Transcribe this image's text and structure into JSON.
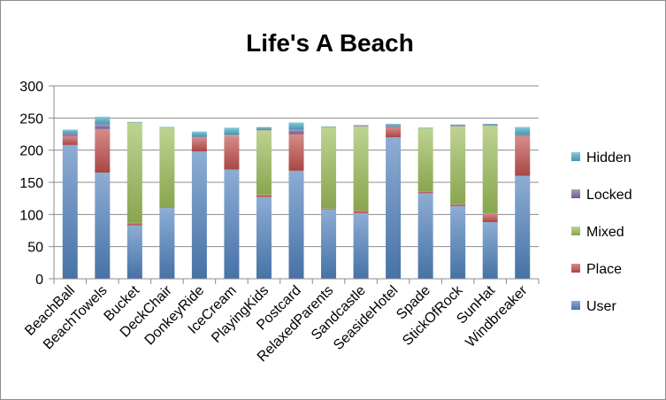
{
  "chart_data": {
    "type": "bar",
    "stacked": true,
    "title": "Life's A Beach",
    "xlabel": "",
    "ylabel": "",
    "ylim": [
      0,
      300
    ],
    "yticks": [
      0,
      50,
      100,
      150,
      200,
      250,
      300
    ],
    "grid": true,
    "legend_position": "right",
    "categories": [
      "BeachBall",
      "BeachTowels",
      "Bucket",
      "DeckChair",
      "DonkeyRide",
      "IceCream",
      "PlayingKids",
      "Postcard",
      "RelaxedParents",
      "Sandcastle",
      "SeasideHotel",
      "Spade",
      "StickOfRock",
      "SunHat",
      "Windbreaker"
    ],
    "series": [
      {
        "name": "User",
        "color": "#4f81bd",
        "values": [
          208,
          165,
          83,
          110,
          198,
          170,
          127,
          168,
          108,
          102,
          220,
          133,
          113,
          88,
          160
        ]
      },
      {
        "name": "Place",
        "color": "#c0504d",
        "values": [
          14,
          68,
          4,
          1,
          22,
          52,
          4,
          57,
          1,
          4,
          16,
          3,
          3,
          14,
          62
        ]
      },
      {
        "name": "Mixed",
        "color": "#9bbb59",
        "values": [
          0,
          0,
          156,
          124,
          0,
          1,
          100,
          0,
          127,
          131,
          0,
          98,
          121,
          136,
          0
        ]
      },
      {
        "name": "Locked",
        "color": "#8064a2",
        "values": [
          3,
          7,
          0,
          0,
          1,
          1,
          2,
          7,
          0,
          1,
          1,
          0,
          1,
          1,
          2
        ]
      },
      {
        "name": "Hidden",
        "color": "#4bacc6",
        "values": [
          7,
          12,
          1,
          1,
          8,
          11,
          3,
          11,
          1,
          1,
          4,
          1,
          2,
          2,
          12
        ]
      }
    ]
  }
}
